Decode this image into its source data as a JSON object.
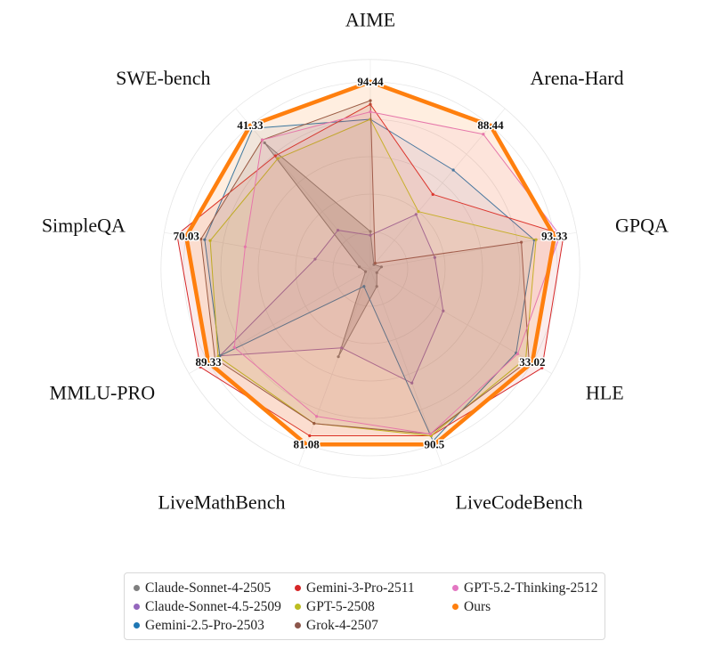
{
  "chart_data": {
    "type": "radar",
    "axes": [
      "AIME",
      "Arena-Hard",
      "GPQA",
      "HLE",
      "LiveCodeBench",
      "LiveMathBench",
      "MMLU-PRO",
      "SimpleQA",
      "SWE-bench"
    ],
    "max_labels": [
      "94.44",
      "88.44",
      "93.33",
      "33.02",
      "90.5",
      "81.08",
      "89.33",
      "70.03",
      "41.33"
    ],
    "grid": true,
    "legend_position": "bottom",
    "series": [
      {
        "name": "Claude-Sonnet-4-2505",
        "color": "#7f7f7f",
        "fill_opacity": 0.25,
        "stroke_width": 1,
        "values": [
          0.2,
          0.03,
          0.06,
          0.04,
          0.1,
          0.5,
          0.03,
          0.06,
          0.88
        ]
      },
      {
        "name": "Claude-Sonnet-4.5-2509",
        "color": "#9467bd",
        "fill_opacity": 0.07,
        "stroke_width": 1,
        "values": [
          0.18,
          0.38,
          0.35,
          0.45,
          0.65,
          0.45,
          0.93,
          0.3,
          0.27
        ]
      },
      {
        "name": "Gemini-2.5-Pro-2503",
        "color": "#1f77b4",
        "fill_opacity": 0.07,
        "stroke_width": 1,
        "values": [
          0.8,
          0.69,
          0.89,
          0.9,
          0.98,
          0.1,
          0.93,
          0.9,
          0.98
        ]
      },
      {
        "name": "Gemini-3-Pro-2511",
        "color": "#d62728",
        "fill_opacity": 0.09,
        "stroke_width": 1,
        "values": [
          0.88,
          0.52,
          1.05,
          1.06,
          0.95,
          0.95,
          1.05,
          1.05,
          0.79
        ]
      },
      {
        "name": "GPT-5-2508",
        "color": "#bcbd22",
        "fill_opacity": 0.07,
        "stroke_width": 1,
        "values": [
          0.8,
          0.4,
          0.9,
          0.96,
          0.95,
          0.88,
          0.94,
          0.87,
          0.77
        ]
      },
      {
        "name": "Grok-4-2507",
        "color": "#8c564b",
        "fill_opacity": 0.1,
        "stroke_width": 1,
        "values": [
          0.9,
          0.04,
          0.82,
          0.98,
          0.94,
          0.88,
          0.96,
          0.92,
          0.9
        ]
      },
      {
        "name": "GPT-5.2-Thinking-2512",
        "color": "#e377c2",
        "fill_opacity": 0.08,
        "stroke_width": 1,
        "values": [
          0.84,
          0.94,
          1.03,
          0.91,
          0.94,
          0.84,
          0.84,
          0.68,
          0.9
        ]
      },
      {
        "name": "Ours",
        "color": "#ff7f0e",
        "fill_opacity": 0.13,
        "stroke_width": 4.5,
        "values": [
          1,
          1,
          1,
          1,
          1,
          1,
          1,
          1,
          1
        ]
      }
    ]
  }
}
